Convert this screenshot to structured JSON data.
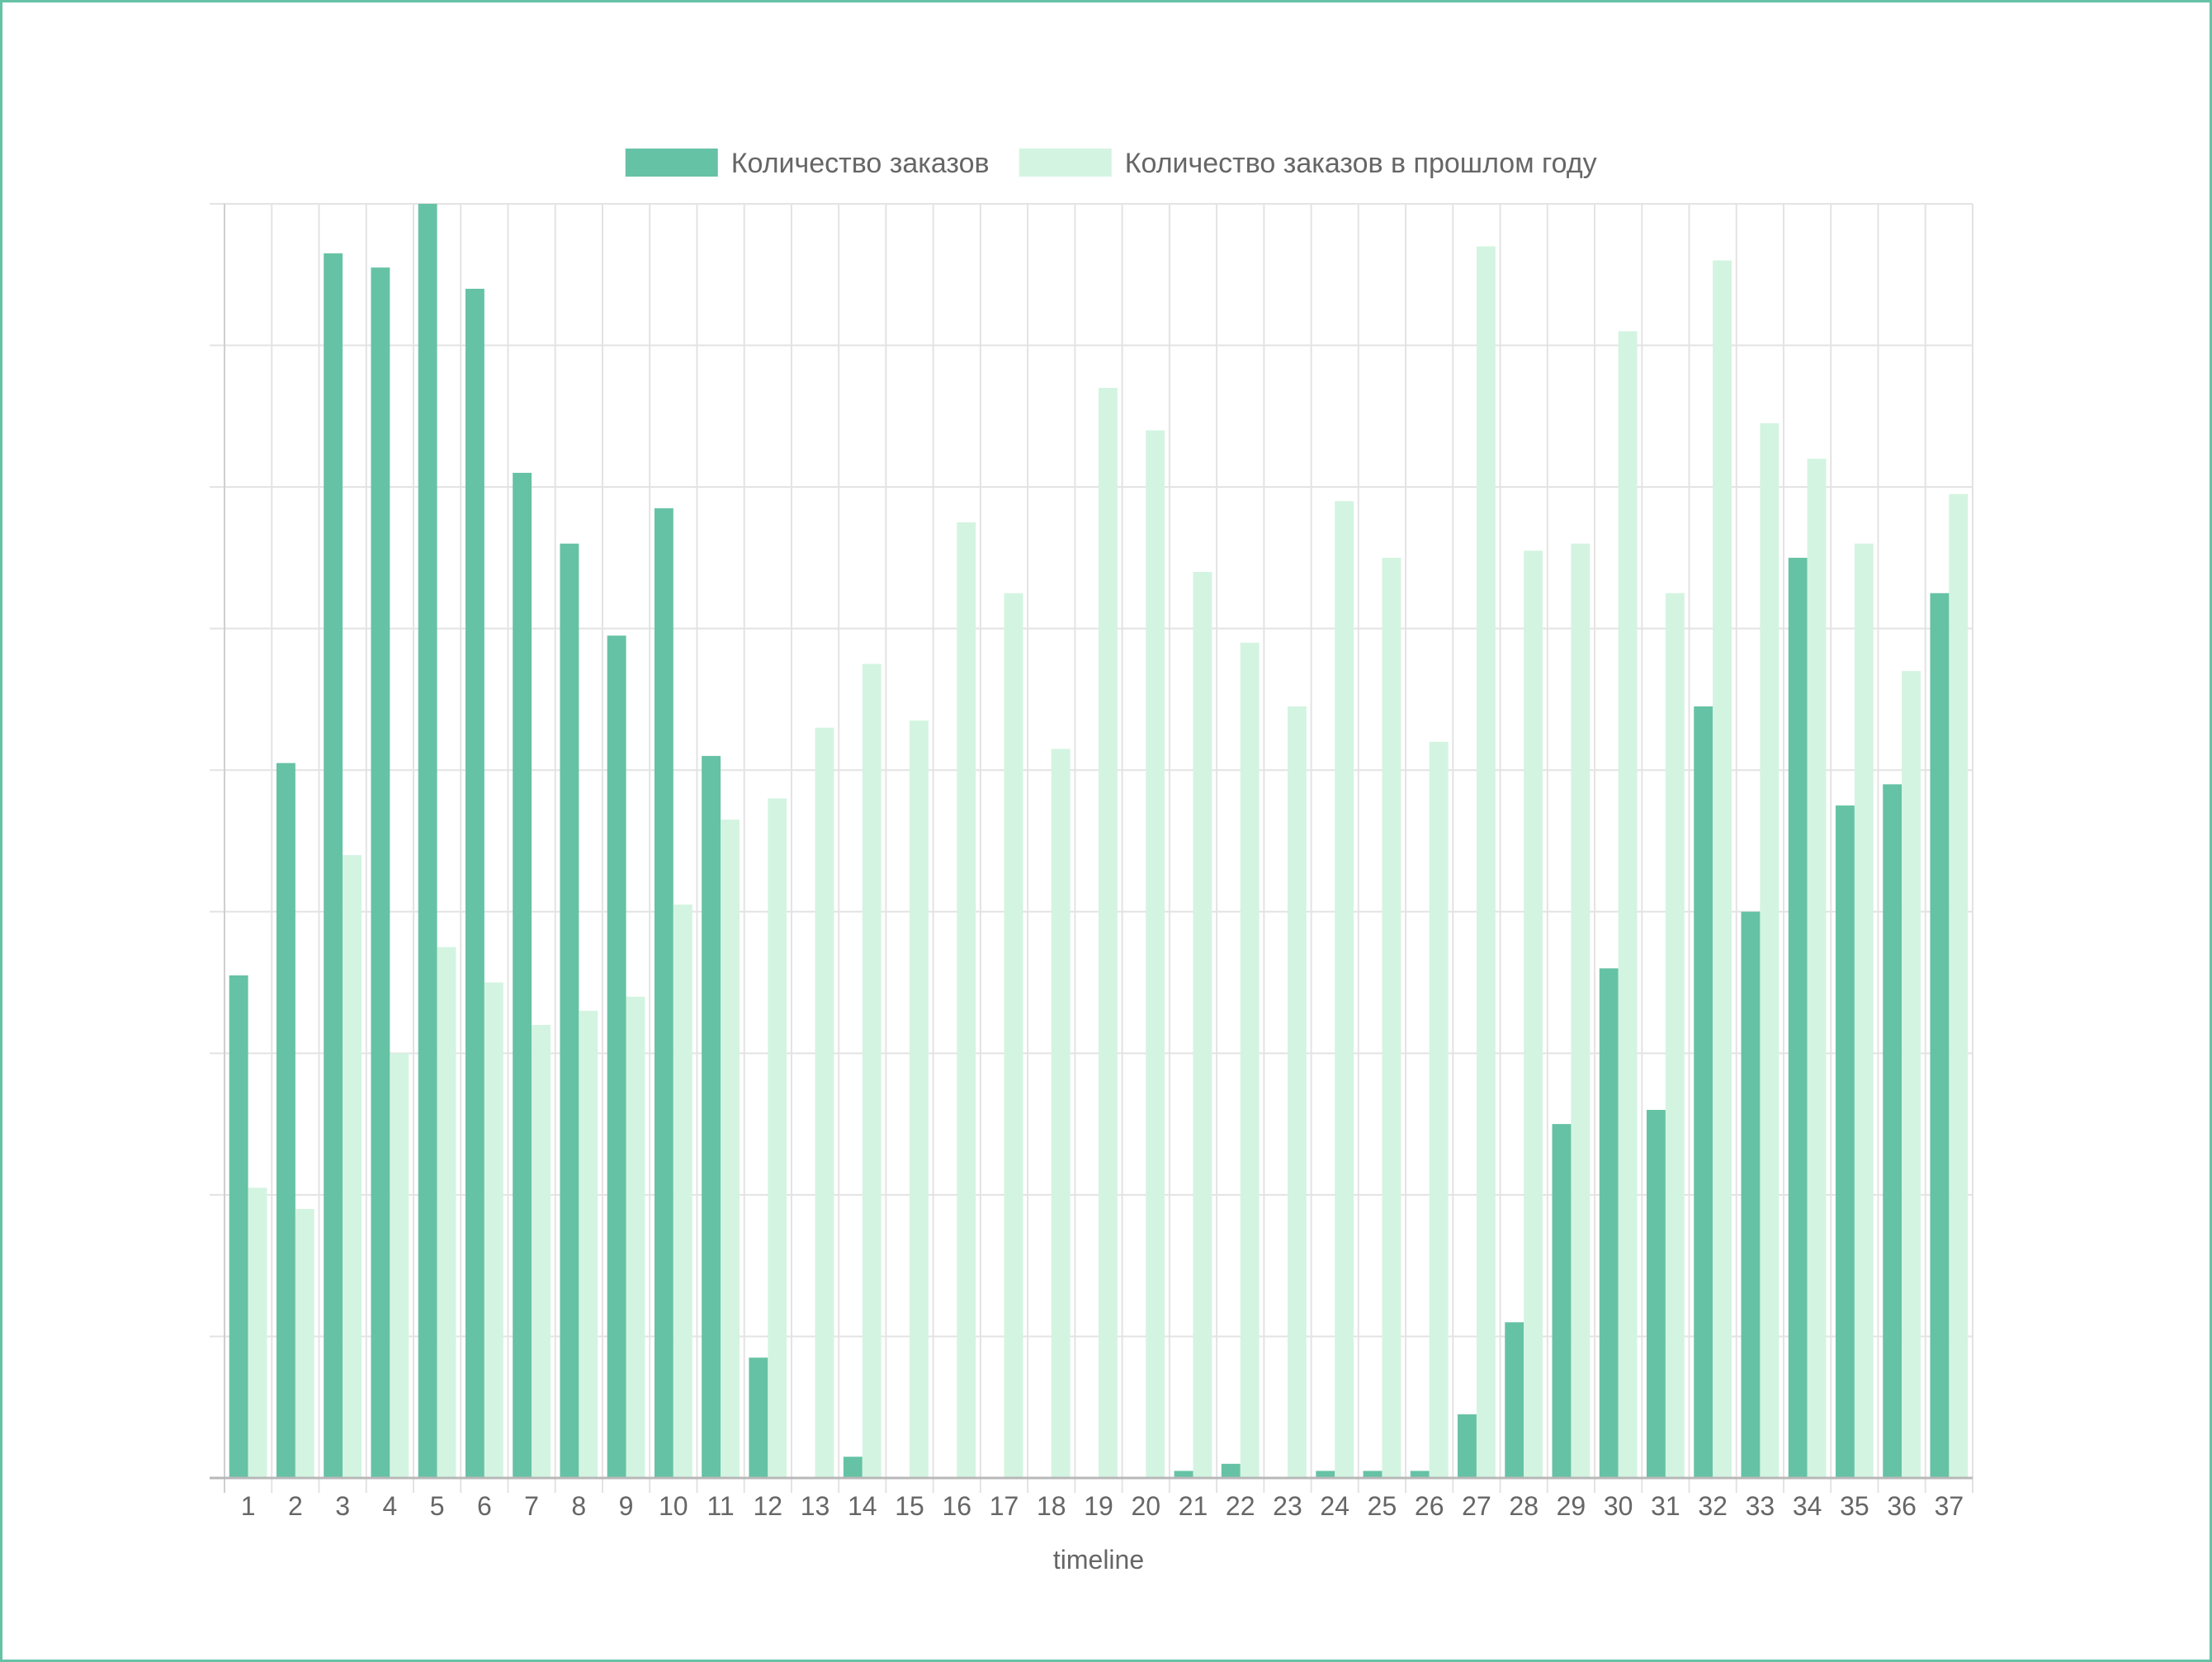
{
  "chart_data": {
    "type": "bar",
    "xlabel": "timeline",
    "ylabel": "",
    "ylim": [
      0,
      90
    ],
    "y_grid_step": 10,
    "grid": true,
    "legend_position": "top",
    "categories": [
      "1",
      "2",
      "3",
      "4",
      "5",
      "6",
      "7",
      "8",
      "9",
      "10",
      "11",
      "12",
      "13",
      "14",
      "15",
      "16",
      "17",
      "18",
      "19",
      "20",
      "21",
      "22",
      "23",
      "24",
      "25",
      "26",
      "27",
      "28",
      "29",
      "30",
      "31",
      "32",
      "33",
      "34",
      "35",
      "36",
      "37"
    ],
    "series": [
      {
        "name": "Количество заказов",
        "color": "#66c2a5",
        "values": [
          35.5,
          50.5,
          86.5,
          85.5,
          90,
          84,
          71,
          66,
          59.5,
          68.5,
          51,
          8.5,
          0,
          1.5,
          0,
          0,
          0,
          0,
          0,
          0,
          0.5,
          1,
          0,
          0.5,
          0.5,
          0.5,
          4.5,
          11,
          25,
          36,
          26,
          54.5,
          40,
          65,
          47.5,
          49,
          62.5
        ]
      },
      {
        "name": "Количество заказов в прошлом году",
        "color": "#d3f4e1",
        "values": [
          20.5,
          19,
          44,
          30,
          37.5,
          35,
          32,
          33,
          34,
          40.5,
          46.5,
          48,
          53,
          57.5,
          53.5,
          67.5,
          62.5,
          51.5,
          77,
          74,
          64,
          59,
          54.5,
          69,
          65,
          52,
          87,
          65.5,
          66,
          81,
          62.5,
          86,
          74.5,
          72,
          66,
          57,
          69.5
        ]
      }
    ]
  }
}
